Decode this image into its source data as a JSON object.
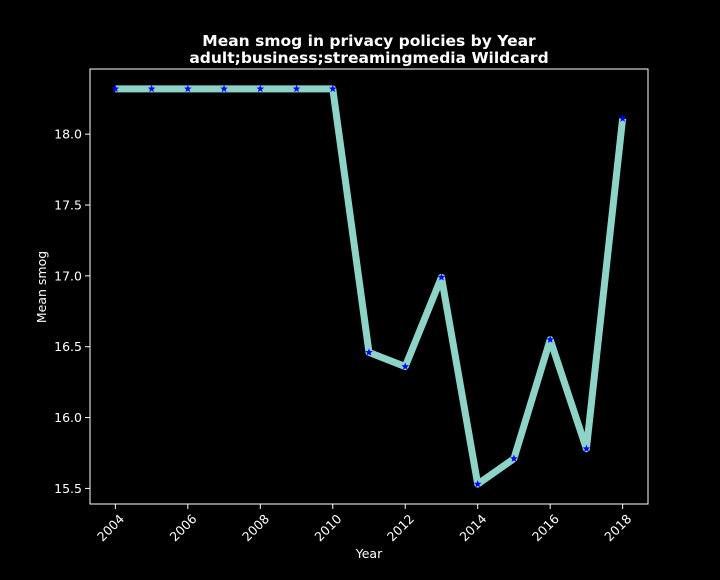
{
  "chart_data": {
    "type": "line",
    "title": "Mean smog in privacy policies by Year",
    "subtitle": "adult;business;streamingmedia Wildcard",
    "xlabel": "Year",
    "ylabel": "Mean smog",
    "x": [
      2004,
      2005,
      2006,
      2007,
      2008,
      2009,
      2010,
      2011,
      2012,
      2013,
      2014,
      2015,
      2016,
      2017,
      2018
    ],
    "series": [
      {
        "values": [
          18.32,
          18.32,
          18.32,
          18.32,
          18.32,
          18.32,
          18.32,
          16.46,
          16.36,
          16.99,
          15.53,
          15.71,
          16.55,
          15.78,
          18.11
        ],
        "line_color": "#8dd3c7",
        "marker": "star",
        "marker_color": "#0000ff"
      }
    ],
    "xlim": [
      2003.3,
      2018.7
    ],
    "ylim": [
      15.39,
      18.46
    ],
    "xticks": [
      2004,
      2006,
      2008,
      2010,
      2012,
      2014,
      2016,
      2018
    ],
    "yticks": [
      15.5,
      16.0,
      16.5,
      17.0,
      17.5,
      18.0
    ],
    "ytick_labels": [
      "15.5",
      "16.0",
      "16.5",
      "17.0",
      "17.5",
      "18.0"
    ],
    "xtick_rotation": 45,
    "grid": false,
    "legend": "none",
    "background": "#000000",
    "foreground": "#ffffff"
  }
}
